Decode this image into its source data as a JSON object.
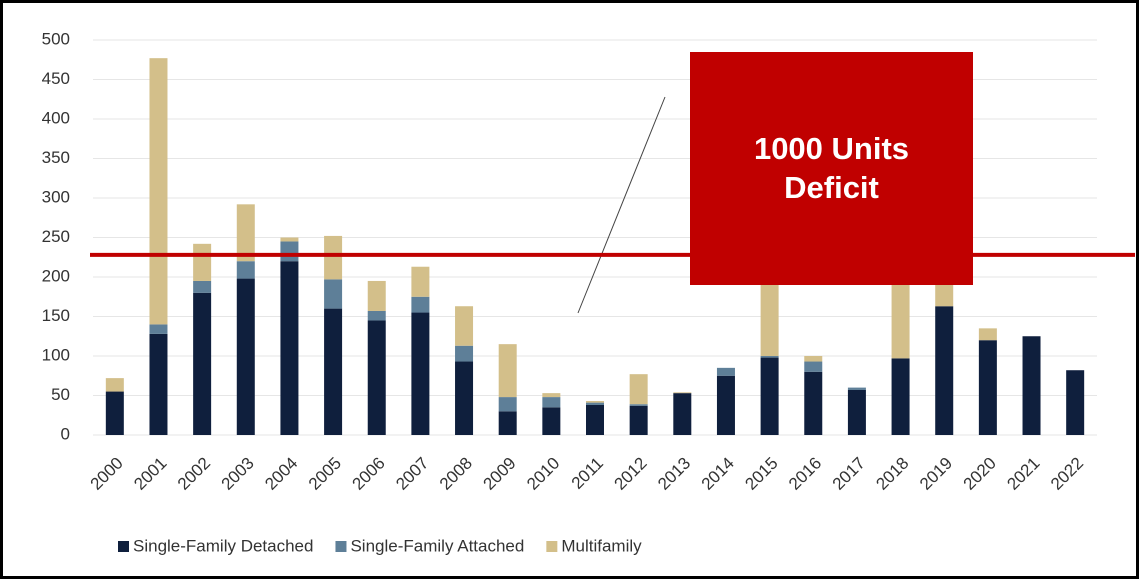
{
  "chart_data": {
    "type": "stacked_bar",
    "categories": [
      "2000",
      "2001",
      "2002",
      "2003",
      "2004",
      "2005",
      "2006",
      "2007",
      "2008",
      "2009",
      "2010",
      "2011",
      "2012",
      "2013",
      "2014",
      "2015",
      "2016",
      "2017",
      "2018",
      "2019",
      "2020",
      "2021",
      "2022"
    ],
    "series": [
      {
        "name": "Single-Family Detached",
        "color": "#0f1f3d",
        "values": [
          55,
          128,
          180,
          198,
          220,
          160,
          145,
          155,
          93,
          30,
          35,
          38,
          37,
          53,
          75,
          98,
          80,
          57,
          97,
          163,
          120,
          125,
          82
        ]
      },
      {
        "name": "Single-Family Attached",
        "color": "#5e7f98",
        "values": [
          0,
          12,
          15,
          22,
          25,
          37,
          12,
          20,
          20,
          18,
          13,
          3,
          2,
          0,
          10,
          2,
          13,
          3,
          0,
          0,
          0,
          0,
          0
        ]
      },
      {
        "name": "Multifamily",
        "color": "#d3bf8a",
        "values": [
          17,
          337,
          47,
          72,
          5,
          55,
          38,
          38,
          50,
          67,
          5,
          2,
          38,
          1,
          0,
          150,
          7,
          0,
          143,
          37,
          15,
          0,
          0
        ]
      }
    ],
    "ylim": [
      0,
      500
    ],
    "yticks": [
      0,
      50,
      100,
      150,
      200,
      250,
      300,
      350,
      400,
      450,
      500
    ],
    "grid": true,
    "reference_line": {
      "value": 228,
      "color": "#c00000"
    },
    "annotation": "1000 Units Deficit",
    "annotation_color": "#c00000"
  }
}
